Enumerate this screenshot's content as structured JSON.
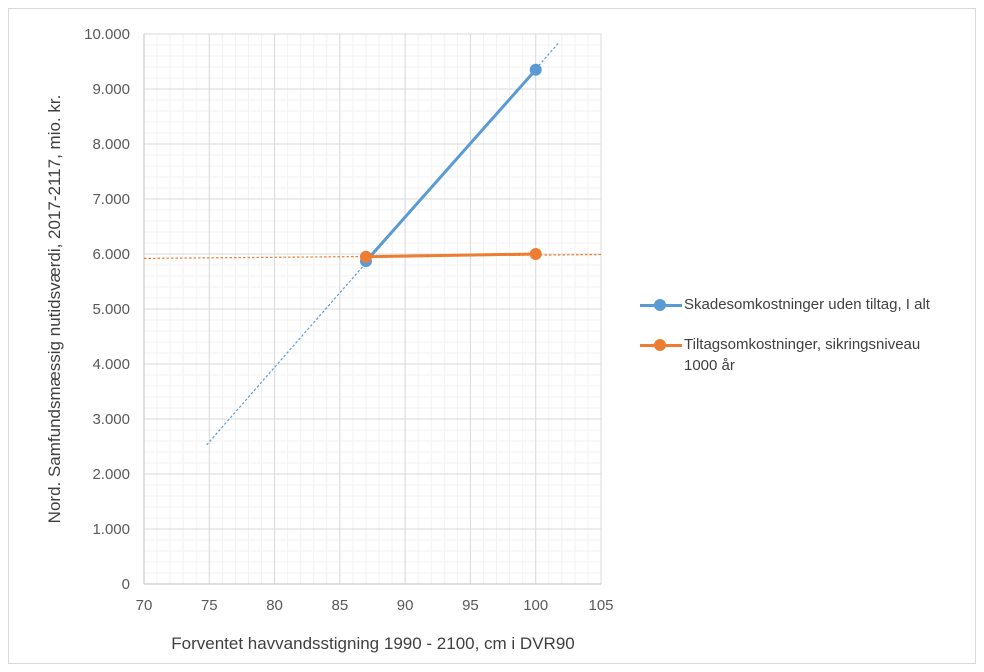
{
  "chart_data": {
    "type": "scatter",
    "xlabel": "Forventet havvandsstigning 1990 - 2100, cm i DVR90",
    "ylabel": "Nord. Samfundsmæssig nutidsværdi, 2017-2117, mio. kr.",
    "xlim": [
      70,
      105
    ],
    "ylim": [
      0,
      10000
    ],
    "x_ticks": [
      "70",
      "75",
      "80",
      "85",
      "90",
      "95",
      "100",
      "105"
    ],
    "y_ticks": [
      "0",
      "1.000",
      "2.000",
      "3.000",
      "4.000",
      "5.000",
      "6.000",
      "7.000",
      "8.000",
      "9.000",
      "10.000"
    ],
    "grid": true,
    "legend_position": "right",
    "series": [
      {
        "name": "Skadesomkostninger uden tiltag, I alt",
        "color": "#5b9bd5",
        "x": [
          87,
          100
        ],
        "y": [
          5870,
          9350
        ],
        "trendline": {
          "x": [
            74.8,
            101.8
          ],
          "y": [
            2530,
            9850
          ]
        }
      },
      {
        "name": "Tiltagsomkostninger, sikringsniveau 1000 år",
        "color": "#ed7d31",
        "x": [
          87,
          100
        ],
        "y": [
          5950,
          6000
        ],
        "trendline": {
          "x": [
            70,
            105
          ],
          "y": [
            5920,
            5990
          ]
        }
      }
    ]
  }
}
